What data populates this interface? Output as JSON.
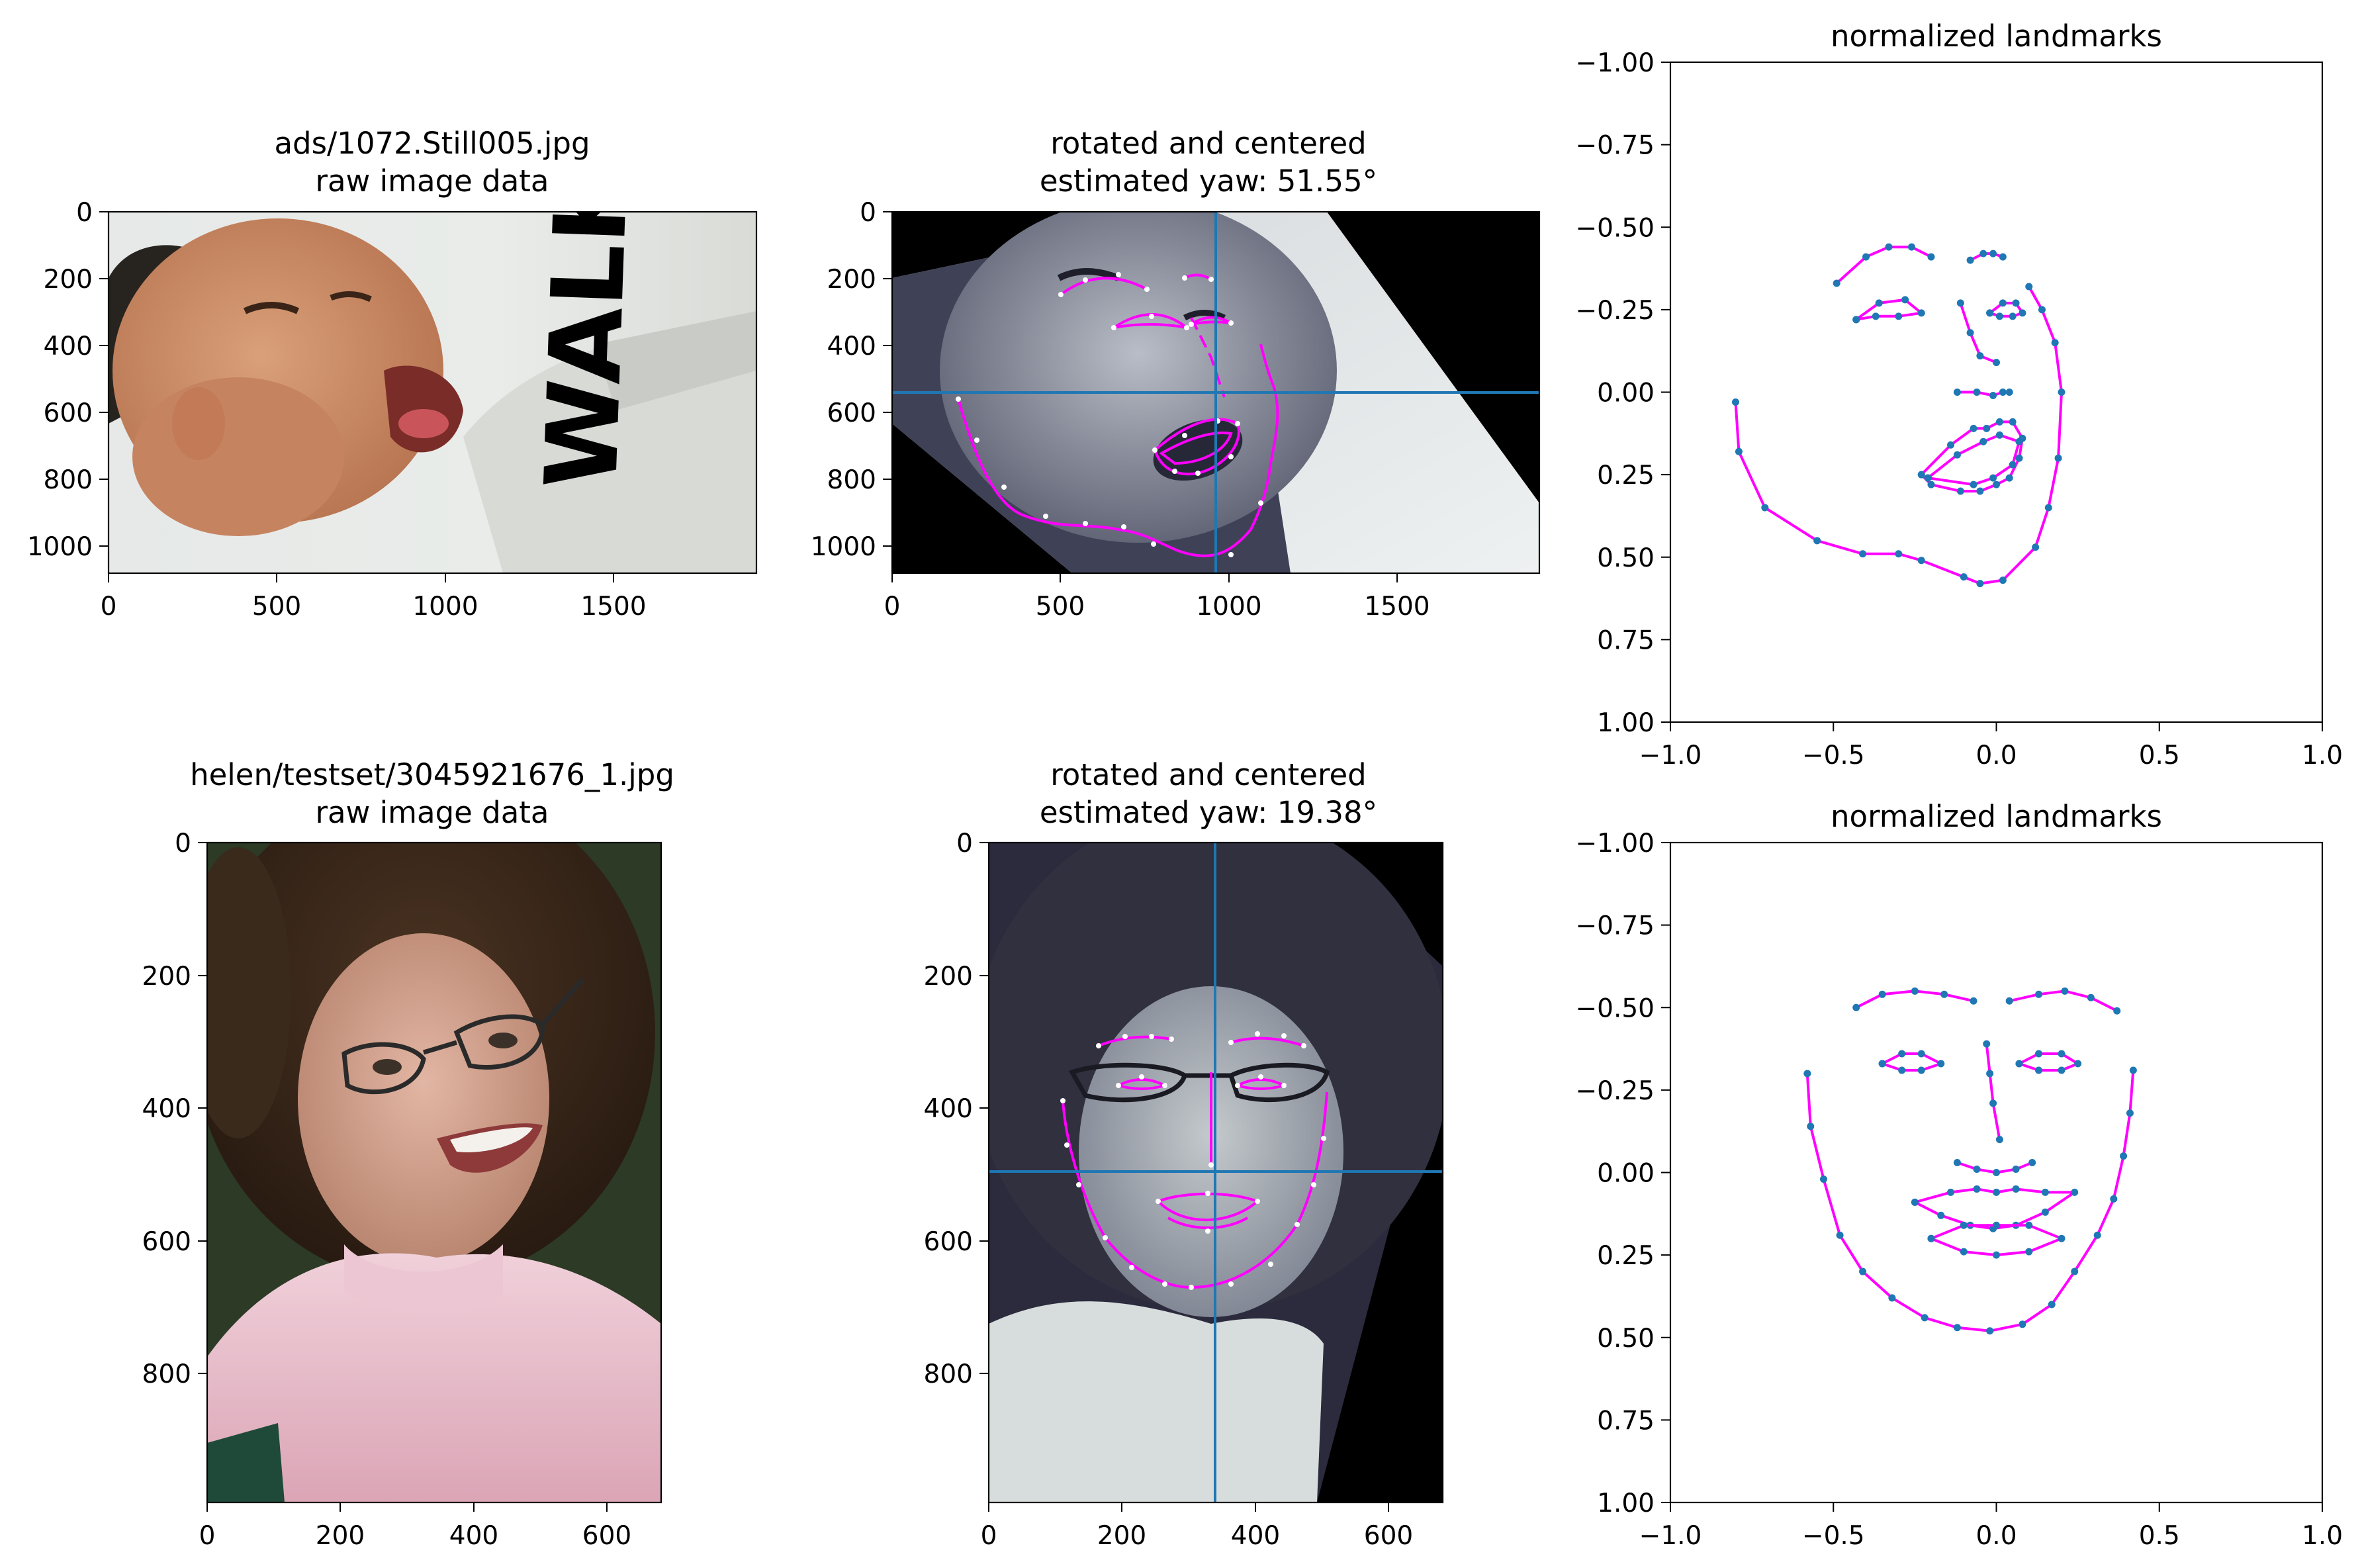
{
  "panels": [
    {
      "id": "r1c1",
      "title_lines": [
        "ads/1072.Still005.jpg",
        "raw image data"
      ],
      "xticks": [
        "0",
        "500",
        "1000",
        "1500"
      ],
      "yticks": [
        "0",
        "200",
        "400",
        "600",
        "800",
        "1000"
      ],
      "image": "baby-photo"
    },
    {
      "id": "r1c2",
      "title_lines": [
        "rotated and centered",
        "estimated yaw: 51.55°"
      ],
      "xticks": [
        "0",
        "500",
        "1000",
        "1500"
      ],
      "yticks": [
        "0",
        "200",
        "400",
        "600",
        "800",
        "1000"
      ],
      "image": "baby-photo-rotated-grayscale",
      "crosshair": {
        "x": 960,
        "y": 540
      },
      "landmark_color": "#ff00ff",
      "point_color": "#ffffff",
      "axis_line_color": "#1f77b4"
    },
    {
      "id": "r2c1",
      "title_lines": [
        "helen/testset/3045921676_1.jpg",
        "raw image data"
      ],
      "xticks": [
        "0",
        "200",
        "400",
        "600"
      ],
      "yticks": [
        "0",
        "200",
        "400",
        "600",
        "800"
      ],
      "image": "woman-photo"
    },
    {
      "id": "r2c2",
      "title_lines": [
        "rotated and centered",
        "estimated yaw: 19.38°"
      ],
      "xticks": [
        "0",
        "200",
        "400",
        "600"
      ],
      "yticks": [
        "0",
        "200",
        "400",
        "600",
        "800"
      ],
      "image": "woman-photo-rotated-grayscale",
      "crosshair": {
        "x": 340,
        "y": 495
      },
      "landmark_color": "#ff00ff",
      "point_color": "#ffffff",
      "axis_line_color": "#1f77b4"
    }
  ],
  "chart_data": [
    {
      "type": "scatter",
      "title": "normalized landmarks",
      "xlim": [
        -1.0,
        1.0
      ],
      "ylim": [
        1.0,
        -1.0
      ],
      "y_inverted": true,
      "xticks": [
        "−1.0",
        "−0.5",
        "0.0",
        "0.5",
        "1.0"
      ],
      "yticks": [
        "−1.00",
        "−0.75",
        "−0.50",
        "−0.25",
        "0.00",
        "0.25",
        "0.50",
        "0.75",
        "1.00"
      ],
      "line_color": "#ff00ff",
      "point_color": "#1f77b4",
      "series": [
        {
          "part": "jaw",
          "points": [
            [
              -0.8,
              0.03
            ],
            [
              -0.79,
              0.18
            ],
            [
              -0.71,
              0.35
            ],
            [
              -0.55,
              0.45
            ],
            [
              -0.41,
              0.49
            ],
            [
              -0.3,
              0.49
            ],
            [
              -0.23,
              0.51
            ],
            [
              -0.1,
              0.56
            ],
            [
              -0.05,
              0.58
            ],
            [
              0.02,
              0.57
            ],
            [
              0.12,
              0.47
            ],
            [
              0.16,
              0.35
            ],
            [
              0.19,
              0.2
            ],
            [
              0.2,
              0.0
            ],
            [
              0.18,
              -0.15
            ],
            [
              0.14,
              -0.25
            ],
            [
              0.1,
              -0.32
            ]
          ]
        },
        {
          "part": "right-brow",
          "points": [
            [
              -0.49,
              -0.33
            ],
            [
              -0.4,
              -0.41
            ],
            [
              -0.33,
              -0.44
            ],
            [
              -0.26,
              -0.44
            ],
            [
              -0.2,
              -0.41
            ]
          ]
        },
        {
          "part": "left-brow",
          "points": [
            [
              -0.08,
              -0.4
            ],
            [
              -0.04,
              -0.42
            ],
            [
              -0.01,
              -0.42
            ],
            [
              0.02,
              -0.41
            ]
          ]
        },
        {
          "part": "nose-bridge",
          "points": [
            [
              -0.11,
              -0.27
            ],
            [
              -0.08,
              -0.18
            ],
            [
              -0.05,
              -0.11
            ],
            [
              0.0,
              -0.09
            ]
          ]
        },
        {
          "part": "nose-base",
          "points": [
            [
              -0.12,
              0.0
            ],
            [
              -0.06,
              0.0
            ],
            [
              -0.01,
              0.01
            ],
            [
              0.02,
              0.0
            ],
            [
              0.04,
              0.0
            ]
          ]
        },
        {
          "part": "right-eye",
          "points": [
            [
              -0.43,
              -0.22
            ],
            [
              -0.36,
              -0.27
            ],
            [
              -0.28,
              -0.28
            ],
            [
              -0.23,
              -0.24
            ],
            [
              -0.3,
              -0.23
            ],
            [
              -0.37,
              -0.23
            ],
            [
              -0.43,
              -0.22
            ]
          ]
        },
        {
          "part": "left-eye",
          "points": [
            [
              -0.02,
              -0.24
            ],
            [
              0.02,
              -0.27
            ],
            [
              0.06,
              -0.27
            ],
            [
              0.08,
              -0.24
            ],
            [
              0.05,
              -0.23
            ],
            [
              0.01,
              -0.23
            ],
            [
              -0.02,
              -0.24
            ]
          ]
        },
        {
          "part": "outer-lip",
          "points": [
            [
              -0.23,
              0.25
            ],
            [
              -0.14,
              0.16
            ],
            [
              -0.07,
              0.11
            ],
            [
              -0.03,
              0.11
            ],
            [
              0.01,
              0.09
            ],
            [
              0.05,
              0.09
            ],
            [
              0.08,
              0.14
            ],
            [
              0.07,
              0.2
            ],
            [
              0.04,
              0.26
            ],
            [
              0.0,
              0.28
            ],
            [
              -0.05,
              0.3
            ],
            [
              -0.11,
              0.3
            ],
            [
              -0.2,
              0.28
            ],
            [
              -0.23,
              0.25
            ]
          ]
        },
        {
          "part": "inner-lip",
          "points": [
            [
              -0.21,
              0.26
            ],
            [
              -0.12,
              0.19
            ],
            [
              -0.04,
              0.15
            ],
            [
              0.01,
              0.13
            ],
            [
              0.07,
              0.15
            ],
            [
              0.05,
              0.22
            ],
            [
              -0.01,
              0.26
            ],
            [
              -0.07,
              0.28
            ],
            [
              -0.21,
              0.26
            ]
          ]
        }
      ]
    },
    {
      "type": "scatter",
      "title": "normalized landmarks",
      "xlim": [
        -1.0,
        1.0
      ],
      "ylim": [
        1.0,
        -1.0
      ],
      "y_inverted": true,
      "xticks": [
        "−1.0",
        "−0.5",
        "0.0",
        "0.5",
        "1.0"
      ],
      "yticks": [
        "−1.00",
        "−0.75",
        "−0.50",
        "−0.25",
        "0.00",
        "0.25",
        "0.50",
        "0.75",
        "1.00"
      ],
      "line_color": "#ff00ff",
      "point_color": "#1f77b4",
      "series": [
        {
          "part": "jaw",
          "points": [
            [
              -0.58,
              -0.3
            ],
            [
              -0.57,
              -0.14
            ],
            [
              -0.53,
              0.02
            ],
            [
              -0.48,
              0.19
            ],
            [
              -0.41,
              0.3
            ],
            [
              -0.32,
              0.38
            ],
            [
              -0.22,
              0.44
            ],
            [
              -0.12,
              0.47
            ],
            [
              -0.02,
              0.48
            ],
            [
              0.08,
              0.46
            ],
            [
              0.17,
              0.4
            ],
            [
              0.24,
              0.3
            ],
            [
              0.31,
              0.19
            ],
            [
              0.36,
              0.08
            ],
            [
              0.39,
              -0.05
            ],
            [
              0.41,
              -0.18
            ],
            [
              0.42,
              -0.31
            ]
          ]
        },
        {
          "part": "right-brow",
          "points": [
            [
              -0.43,
              -0.5
            ],
            [
              -0.35,
              -0.54
            ],
            [
              -0.25,
              -0.55
            ],
            [
              -0.16,
              -0.54
            ],
            [
              -0.07,
              -0.52
            ]
          ]
        },
        {
          "part": "left-brow",
          "points": [
            [
              0.04,
              -0.52
            ],
            [
              0.13,
              -0.54
            ],
            [
              0.21,
              -0.55
            ],
            [
              0.29,
              -0.53
            ],
            [
              0.37,
              -0.49
            ]
          ]
        },
        {
          "part": "nose-bridge",
          "points": [
            [
              -0.03,
              -0.39
            ],
            [
              -0.02,
              -0.3
            ],
            [
              -0.01,
              -0.21
            ],
            [
              0.01,
              -0.1
            ]
          ]
        },
        {
          "part": "nose-base",
          "points": [
            [
              -0.12,
              -0.03
            ],
            [
              -0.06,
              -0.01
            ],
            [
              0.0,
              0.0
            ],
            [
              0.06,
              -0.01
            ],
            [
              0.11,
              -0.03
            ]
          ]
        },
        {
          "part": "right-eye",
          "points": [
            [
              -0.35,
              -0.33
            ],
            [
              -0.29,
              -0.36
            ],
            [
              -0.23,
              -0.36
            ],
            [
              -0.17,
              -0.33
            ],
            [
              -0.23,
              -0.31
            ],
            [
              -0.29,
              -0.31
            ],
            [
              -0.35,
              -0.33
            ]
          ]
        },
        {
          "part": "left-eye",
          "points": [
            [
              0.07,
              -0.33
            ],
            [
              0.13,
              -0.36
            ],
            [
              0.2,
              -0.36
            ],
            [
              0.25,
              -0.33
            ],
            [
              0.2,
              -0.31
            ],
            [
              0.13,
              -0.31
            ],
            [
              0.07,
              -0.33
            ]
          ]
        },
        {
          "part": "outer-lip",
          "points": [
            [
              -0.25,
              0.09
            ],
            [
              -0.14,
              0.06
            ],
            [
              -0.06,
              0.05
            ],
            [
              0.0,
              0.06
            ],
            [
              0.06,
              0.05
            ],
            [
              0.15,
              0.06
            ],
            [
              0.24,
              0.06
            ],
            [
              0.15,
              0.12
            ],
            [
              0.06,
              0.16
            ],
            [
              -0.01,
              0.17
            ],
            [
              -0.08,
              0.16
            ],
            [
              -0.17,
              0.13
            ],
            [
              -0.25,
              0.09
            ]
          ]
        },
        {
          "part": "inner-lip",
          "points": [
            [
              -0.2,
              0.2
            ],
            [
              -0.1,
              0.16
            ],
            [
              0.0,
              0.16
            ],
            [
              0.1,
              0.16
            ],
            [
              0.2,
              0.2
            ],
            [
              0.1,
              0.24
            ],
            [
              0.0,
              0.25
            ],
            [
              -0.1,
              0.24
            ],
            [
              -0.2,
              0.2
            ]
          ]
        }
      ]
    }
  ]
}
